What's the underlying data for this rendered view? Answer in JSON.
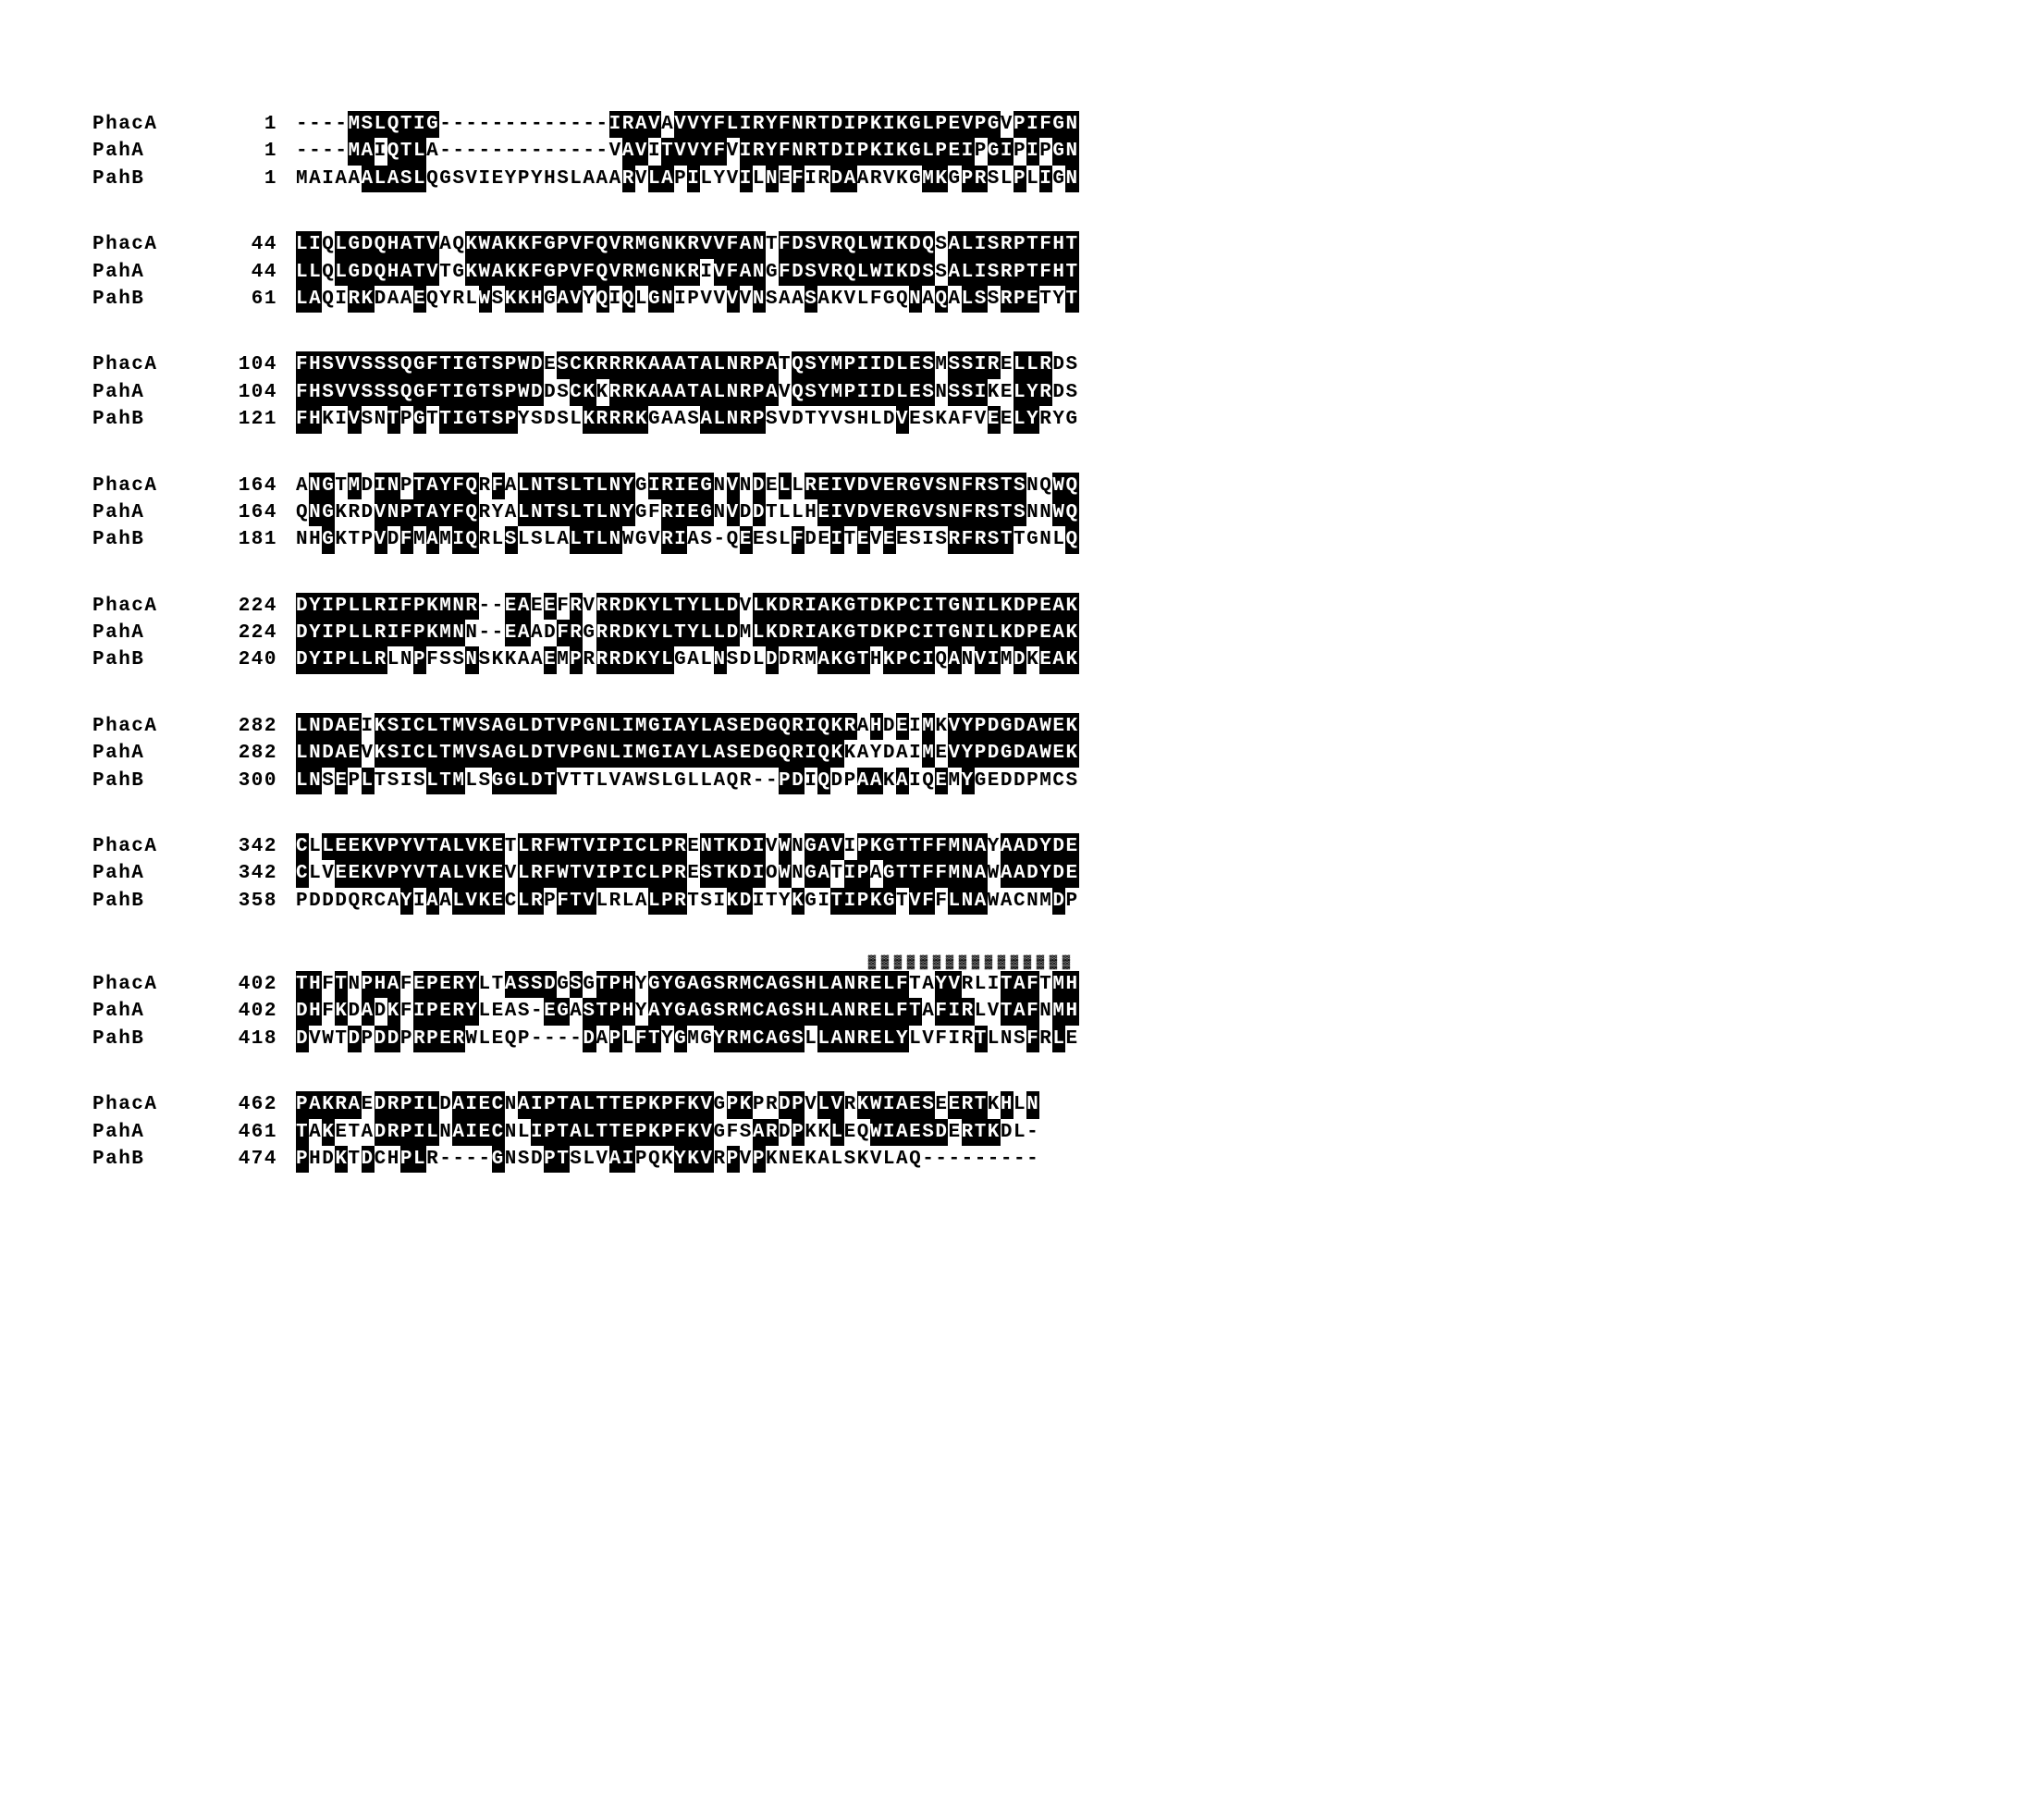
{
  "font_family": "Courier New",
  "font_size_pt": 21,
  "font_weight": "bold",
  "conserved_bg": "#000000",
  "conserved_fg": "#ffffff",
  "plain_fg": "#000000",
  "background_color": "#ffffff",
  "gap_char": "-",
  "blocks": [
    {
      "rows": [
        {
          "label": "PhacA",
          "pos": 1,
          "seq": "----MSLQTIG-------------IRAVAVVYFLIRYFNRTDIPKIKGLPEVPGVPIFGN",
          "mask": "00001111111000000000000011110111111111111111111111111101111111"
        },
        {
          "label": "PahA",
          "pos": 1,
          "seq": "----MAIQTLA-------------VAVITVVYFVIRYFNRTDIPKIKGLPEIPGIPIPGN",
          "mask": "00001101110000000000000001101111101111111111111111110110101111"
        },
        {
          "label": "PahB",
          "pos": 1,
          "seq": "MAIAAALASLQGSVIEYPYHSLAAARVLAPILYVILNEFIRDAARVKGMKGPRSLPLIGN",
          "mask": "0000011111000000000000000101101000101010011000001101100101011111"
        }
      ]
    },
    {
      "rows": [
        {
          "label": "PhacA",
          "pos": 44,
          "seq": "LIQLGDQHATVAQKWAKKFGPVFQVRMGNKRVVFANTFDSVRQLWIKDQSALISRPTFHT",
          "mask": "110111111110011111111111111111111111011111111111101111111111"
        },
        {
          "label": "PahA",
          "pos": 44,
          "seq": "LLQLGDQHATVTGKWAKKFGPVFQVRMGNKRIVFANGFDSVRQLWIKDSSALISRPTFHT",
          "mask": "110111111110011111111111111111101111011111111111101111111111"
        },
        {
          "label": "PahB",
          "pos": 61,
          "seq": "LAQIRKDAAEQYRLWSKKHGAVYQIQLGNIPVVVVNSAASAKVLFGQNAQALSSRPETYT",
          "mask": "110011000100001011101101010110000101000100000001010110111001"
        }
      ]
    },
    {
      "rows": [
        {
          "label": "PhacA",
          "pos": 104,
          "seq": "FHSVVSSSQGFTIGTSPWDESCKRRRKAAATALNRPATQSYMPIIDLESMSSIRELLRDS",
          "mask": "111111111111111111101111111111111111101111111111101111011100"
        },
        {
          "label": "PahA",
          "pos": 104,
          "seq": "FHSVVSSSQGFTIGTSPWDDSCKKRRKAAATALNRPAVQSYMPIIDLESNSSIKELYRDS",
          "mask": "111111111111111111100110111111111111101111111111101110011100"
        },
        {
          "label": "PahB",
          "pos": 121,
          "seq": "FHKIVSNTPGTTIGTSPYSDSLKRRRKGAASALNRPSVDTYVSHLDVESKAFVEELYRYG",
          "mask": "110010010101111110000011111000011111000000000010000001011000"
        }
      ]
    },
    {
      "rows": [
        {
          "label": "PhacA",
          "pos": 164,
          "seq": "ANGTMDINPTAYFQRFALNTSLTLNYGIRIEGNVNDELLREIVDVERGVSNFRSTSNQWQ",
          "mask": "011010110111110101111111110111110101010111111111111111110011"
        },
        {
          "label": "PahA",
          "pos": 164,
          "seq": "QNGKRDVNPTAYFQRYALNTSLTLNYGFRIEGNVDDTLLHEIVDVERGVSNFRSTSNNWQ",
          "mask": "011000111111110001111111110011110101000011111111111111110011"
        },
        {
          "label": "PahB",
          "pos": 181,
          "seq": "NHGKTPVDFMAMIQRLSLSLALTLNWGVRIAS-QEESLFDEITEVEESISRFRSTTGNLQ",
          "mask": "001000101010110010000111100011000010001001010100001111100001"
        }
      ]
    },
    {
      "rows": [
        {
          "label": "PhacA",
          "pos": 224,
          "seq": "DYIPLLRIFPKMNR--EAEEFRVRRDKYLTYLLDVLKDRIAKGTDKPCITGNILKDPEAK",
          "mask": "111111111111110011010101111111111101111111111111111111111111"
        },
        {
          "label": "PahA",
          "pos": 224,
          "seq": "DYIPLLRIFPKMNN--EAADFRGRRDKYLTYLLDMLKDRIAKGTDKPCITGNILKDPEAK",
          "mask": "111111111111100011001101111111111101111111111111111111111111"
        },
        {
          "label": "PahB",
          "pos": 240,
          "seq": "DYIPLLRLNPFSSNSKKAAEMPRRRDKYLGALNSDLDDRMAKGTHKPCIQANVIMDKEAK",
          "mask": "111111100100010000010101111110001000100011110111101011010111"
        }
      ]
    },
    {
      "rows": [
        {
          "label": "PhacA",
          "pos": 282,
          "seq": "LNDAEIKSICLTMVSAGLDTVPGNLIMGIAYLASEDGQRIQKRAHDEIMKVYPDGDAWEK",
          "mask": "111110111111111111111111111111111111111111101010101111111111"
        },
        {
          "label": "PahA",
          "pos": 282,
          "seq": "LNDAEVKSICLTMVSAGLDTVPGNLIMGIAYLASEDGQRIQKKAYDAIMEVYPDGDAWEK",
          "mask": "111110111111111111111111111111111111111111000000101111111111"
        },
        {
          "label": "PahB",
          "pos": 300,
          "seq": "LNSEPLTSISLTMLSGGLDTVTTLVAWSLGLLAQR--PDIQDPAAKAIQEMYGEDDPMCS",
          "mask": "110101000011100111110000000000000000011010011010010100000000"
        }
      ]
    },
    {
      "rows": [
        {
          "label": "PhacA",
          "pos": 342,
          "seq": "CLLEEKVPYVTALVKETLRFWTVIPICLPRENTKDIVWNGAVIPKGTTFFMNAYAADYDE",
          "mask": "101111111111111101111111111111011111010111011111111110111111"
        },
        {
          "label": "PahA",
          "pos": 342,
          "seq": "CLVEEKVPYVTALVKEVLRFWTVIPICLPRESTKDIOWNGATIPAGTTFFMNAWAADYDE",
          "mask": "100111111111111101111111111111011111010110110111111110111111"
        },
        {
          "label": "PahB",
          "pos": 358,
          "seq": "PDDDQRCAYIAALVKECLRPFTVLRLALPRTSIKDITYKGITIPKGTVFFLNAWACNMDP",
          "mask": "000000001010111101101110000111000110001001111101101110000010"
        }
      ]
    },
    {
      "annotation": {
        "start": 44,
        "length": 16,
        "char": "▓"
      },
      "rows": [
        {
          "label": "PhacA",
          "pos": 402,
          "seq": "THFTNPHAFEPERYLTASSDGSGTPHYGYGAGSRMCAGSHLANRELFTAYVRLITAFTMH",
          "mask": "110101110111110011110101110111111111111111111110011000111011"
        },
        {
          "label": "PahA",
          "pos": 402,
          "seq": "DHFKDADKFIPERYLEAS-EGASTPHYAYGAGSRMCAGSHLANRELFTAFIRLVTAFNMH",
          "mask": "110101010111110000011011110111111111111111111111011100111011"
        },
        {
          "label": "PahB",
          "pos": 418,
          "seq": "DVWTDPDDPRPERWLEQP----DAPLFTYGMGYRMCAGSLLANRELYLVFIRTLNSFRLE",
          "mask": "100010110111100000000010101101001111111011111110000010001010"
        }
      ]
    },
    {
      "rows": [
        {
          "label": "PhacA",
          "pos": 462,
          "seq": "PAKRAEDRPILDAIECNAIPTALTTEPKPFKVGPKPRDPVLVRKWIAESEERTKHLN",
          "mask": "111110111110111101111111111111110110011011011111101110101"
        },
        {
          "label": "PahA",
          "pos": 461,
          "seq": "TAKETADRPILNAIECNLIPTALTTEPKPFKVGFSARDPKKLEQWIAESDERTKDL-",
          "mask": "101000111110111100111111111111110001101001001111110111000"
        },
        {
          "label": "PahB",
          "pos": 474,
          "seq": "PHDKTDCHPLR----GNSDPTSLVAIPQKYKVRPVPKNEKALSKVLAQ---------",
          "mask": "100101001100000100011000110001110101000000000000000000000"
        }
      ]
    }
  ]
}
